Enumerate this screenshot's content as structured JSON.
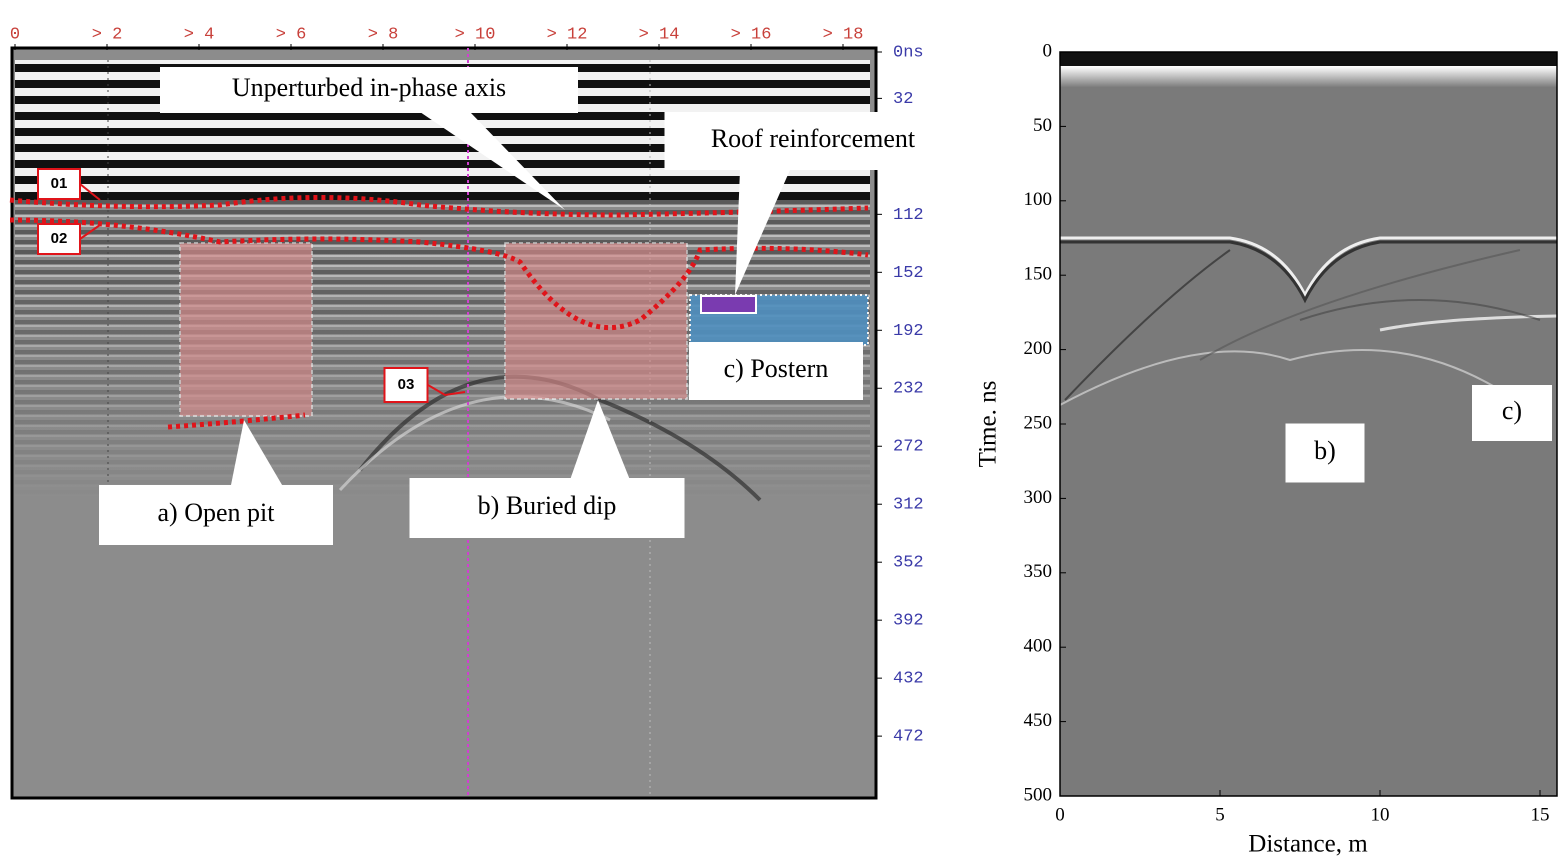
{
  "chart_data": [
    {
      "type": "radargram",
      "xlim": [
        0,
        19
      ],
      "xticks": [
        0,
        {
          "value": 2,
          "label": "> 2"
        },
        {
          "value": 4,
          "label": "> 4"
        },
        {
          "value": 6,
          "label": "> 6"
        },
        {
          "value": 8,
          "label": "> 8"
        },
        {
          "value": 10,
          "label": "> 10"
        },
        {
          "value": 12,
          "label": "> 12"
        },
        {
          "value": 14,
          "label": "> 14"
        },
        {
          "value": 16,
          "label": "> 16"
        },
        {
          "value": 18,
          "label": "> 18"
        }
      ],
      "ylim": [
        0,
        514
      ],
      "yticks": [
        {
          "value": 0,
          "label": "0ns"
        },
        32,
        112,
        152,
        192,
        232,
        272,
        312,
        352,
        392,
        432,
        472
      ],
      "annotations": [
        "Unperturbed in-phase axis",
        "Roof reinforcement",
        "01",
        "02",
        "03",
        "a) Open pit",
        "b) Buried dip",
        "c) Postern"
      ]
    },
    {
      "type": "radargram",
      "x_label": "Distance, m",
      "y_label": "Time. ns",
      "xlim": [
        0,
        15.5
      ],
      "xticks": [
        0,
        5,
        10,
        15
      ],
      "ylim": [
        0,
        500
      ],
      "yticks": [
        0,
        50,
        100,
        150,
        200,
        250,
        300,
        350,
        400,
        450,
        500
      ],
      "annotations": [
        "b)",
        "c)"
      ]
    }
  ]
}
